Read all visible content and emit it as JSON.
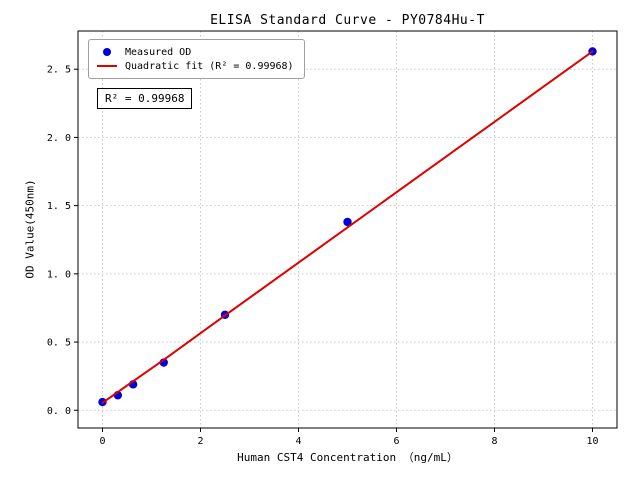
{
  "chart_data": {
    "type": "scatter",
    "title": "ELISA Standard Curve - PY0784Hu-T",
    "xlabel": "Human CST4 Concentration （ng/mL）",
    "ylabel": "OD Value(450nm)",
    "xlim": [
      -0.5,
      10.5
    ],
    "ylim": [
      -0.13,
      2.78
    ],
    "x_ticks": [
      0,
      2,
      4,
      6,
      8,
      10
    ],
    "x_tick_labels": [
      "0",
      "2",
      "4",
      "6",
      "8",
      "10"
    ],
    "y_ticks": [
      0,
      0.5,
      1.0,
      1.5,
      2.0,
      2.5
    ],
    "y_tick_labels": [
      "0. 0",
      "0. 5",
      "1. 0",
      "1. 5",
      "2. 0",
      "2. 5"
    ],
    "grid": true,
    "legend_position": "upper-left",
    "annotation": "R² = 0.99968",
    "series": [
      {
        "name": "Measured OD",
        "type": "scatter",
        "marker": "circle",
        "color": "#0000dd",
        "x": [
          0,
          0.313,
          0.625,
          1.25,
          2.5,
          5,
          10
        ],
        "y": [
          0.06,
          0.11,
          0.19,
          0.35,
          0.7,
          1.38,
          2.63
        ]
      },
      {
        "name": "Quadratic fit (R² = 0.99968)",
        "type": "line",
        "color": "#e00000",
        "x": [
          0,
          1.25,
          2.5,
          5,
          7.5,
          10
        ],
        "y": [
          0.055,
          0.37,
          0.695,
          1.34,
          1.985,
          2.63
        ]
      }
    ]
  }
}
